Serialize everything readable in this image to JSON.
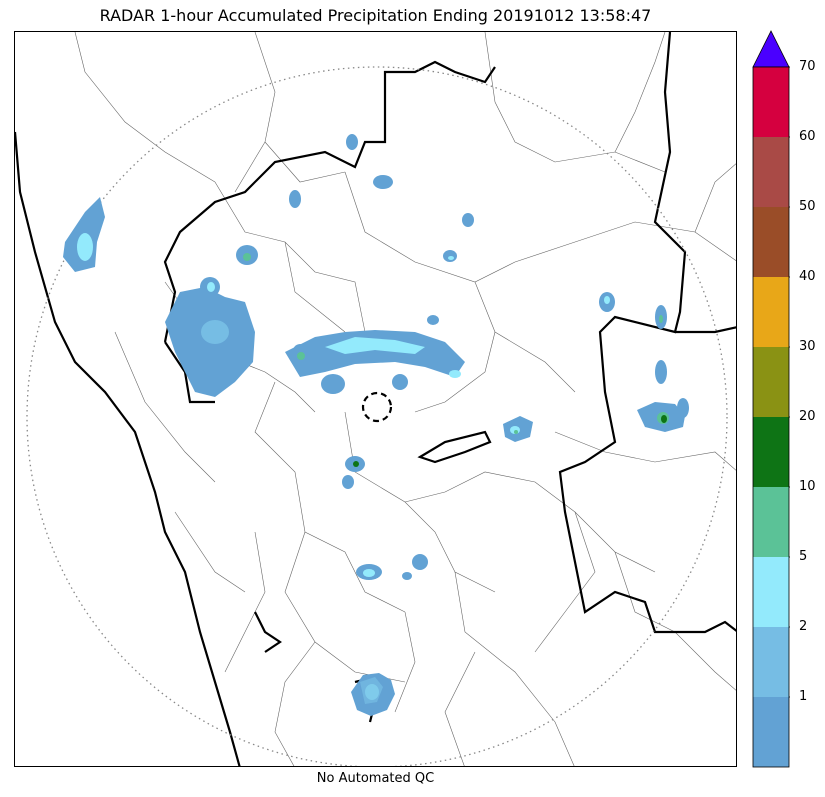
{
  "title": "RADAR 1-hour Accumulated Precipitation Ending 20191012 13:58:47",
  "footer_note": "No Automated QC",
  "colorbar": {
    "extend": "max",
    "extend_color": "#4a00ff",
    "bins": [
      {
        "lower": 0,
        "upper": 1,
        "color": "#62a2d4"
      },
      {
        "lower": 1,
        "upper": 2,
        "color": "#76bde4"
      },
      {
        "lower": 2,
        "upper": 5,
        "color": "#93eafc"
      },
      {
        "lower": 5,
        "upper": 10,
        "color": "#5bc297"
      },
      {
        "lower": 10,
        "upper": 20,
        "color": "#0e7415"
      },
      {
        "lower": 20,
        "upper": 30,
        "color": "#8a9214"
      },
      {
        "lower": 30,
        "upper": 40,
        "color": "#e8a718"
      },
      {
        "lower": 40,
        "upper": 50,
        "color": "#9a4d28"
      },
      {
        "lower": 50,
        "upper": 60,
        "color": "#a94a46"
      },
      {
        "lower": 60,
        "upper": 70,
        "color": "#d5003f"
      }
    ],
    "tick_labels": [
      "1",
      "2",
      "5",
      "10",
      "20",
      "30",
      "40",
      "50",
      "60",
      "70"
    ]
  },
  "map": {
    "range_ring": "dotted",
    "radar_site_marker": "dashed-circle",
    "boundary_color": "#000000",
    "district_line_color": "#555555"
  }
}
